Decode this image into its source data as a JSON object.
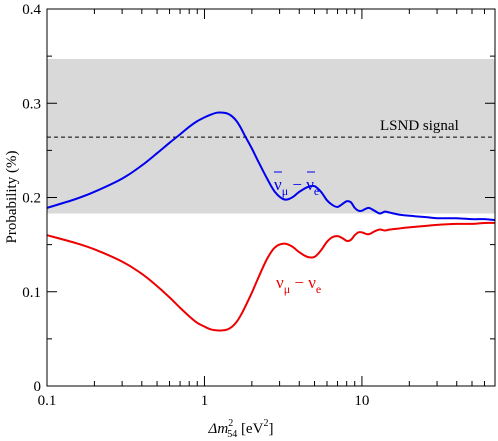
{
  "chart_data": {
    "type": "line",
    "title": "",
    "xlabel": "Δm²₅₄ [eV²]",
    "xlabel_parts": {
      "delta": "Δm",
      "sup": "2",
      "sub": "54",
      "unit_open": " [eV",
      "unit_sup": "2",
      "unit_close": "]"
    },
    "ylabel": "Probability (%)",
    "x_scale": "log",
    "xlim": [
      0.1,
      70
    ],
    "ylim": [
      0,
      0.4
    ],
    "x_ticks": [
      {
        "value": 0.1,
        "label": "0.1"
      },
      {
        "value": 1,
        "label": "1"
      },
      {
        "value": 10,
        "label": "10"
      }
    ],
    "y_ticks": [
      {
        "value": 0,
        "label": "0"
      },
      {
        "value": 0.1,
        "label": "0.1"
      },
      {
        "value": 0.2,
        "label": "0.2"
      },
      {
        "value": 0.3,
        "label": "0.3"
      },
      {
        "value": 0.4,
        "label": "0.4"
      }
    ],
    "grid": false,
    "band": {
      "y_low": 0.183,
      "y_high": 0.347,
      "color": "#d9d9d9"
    },
    "reference_line": {
      "y": 0.264,
      "label": "LSND signal",
      "style": "dashed",
      "color": "#000000"
    },
    "series": [
      {
        "label_parts": {
          "a": "ν",
          "a_sub": "μ",
          "sep": " − ",
          "b": "ν",
          "b_sub": "e",
          "bar": true
        },
        "color": "#0000ee",
        "x": [
          0.1,
          0.15,
          0.2,
          0.3,
          0.4,
          0.5,
          0.6,
          0.7,
          0.8,
          0.9,
          1.0,
          1.1,
          1.2,
          1.3,
          1.4,
          1.5,
          1.6,
          1.7,
          1.8,
          2.0,
          2.2,
          2.5,
          2.8,
          3.2,
          3.6,
          4.0,
          4.5,
          5.0,
          5.5,
          6.0,
          6.5,
          7.0,
          7.5,
          8.0,
          8.5,
          9.0,
          9.5,
          10.0,
          11.0,
          12.0,
          13.0,
          14.0,
          15.0,
          17.0,
          19.0,
          22.0,
          26.0,
          30.0,
          40.0,
          50.0,
          60.0,
          70.0
        ],
        "y": [
          0.189,
          0.198,
          0.206,
          0.22,
          0.234,
          0.247,
          0.258,
          0.267,
          0.275,
          0.281,
          0.285,
          0.288,
          0.29,
          0.29,
          0.289,
          0.286,
          0.281,
          0.274,
          0.266,
          0.252,
          0.238,
          0.22,
          0.206,
          0.198,
          0.2,
          0.206,
          0.211,
          0.212,
          0.206,
          0.197,
          0.192,
          0.19,
          0.193,
          0.196,
          0.195,
          0.189,
          0.186,
          0.186,
          0.189,
          0.186,
          0.183,
          0.185,
          0.184,
          0.182,
          0.181,
          0.18,
          0.179,
          0.178,
          0.178,
          0.177,
          0.177,
          0.176
        ]
      },
      {
        "label_parts": {
          "a": "ν",
          "a_sub": "μ",
          "sep": " − ",
          "b": "ν",
          "b_sub": "e",
          "bar": false
        },
        "color": "#ee0000",
        "x": [
          0.1,
          0.15,
          0.2,
          0.3,
          0.4,
          0.5,
          0.6,
          0.7,
          0.8,
          0.9,
          1.0,
          1.1,
          1.2,
          1.3,
          1.4,
          1.5,
          1.6,
          1.7,
          1.8,
          2.0,
          2.2,
          2.5,
          2.8,
          3.2,
          3.6,
          4.0,
          4.5,
          5.0,
          5.5,
          6.0,
          6.5,
          7.0,
          7.5,
          8.0,
          8.5,
          9.0,
          9.5,
          10.0,
          11.0,
          12.0,
          13.0,
          14.0,
          15.0,
          17.0,
          19.0,
          22.0,
          26.0,
          30.0,
          40.0,
          50.0,
          60.0,
          70.0
        ],
        "y": [
          0.16,
          0.152,
          0.145,
          0.132,
          0.119,
          0.106,
          0.094,
          0.083,
          0.074,
          0.067,
          0.063,
          0.06,
          0.059,
          0.059,
          0.06,
          0.063,
          0.068,
          0.075,
          0.083,
          0.099,
          0.115,
          0.135,
          0.147,
          0.151,
          0.148,
          0.142,
          0.137,
          0.137,
          0.144,
          0.153,
          0.158,
          0.159,
          0.157,
          0.154,
          0.155,
          0.16,
          0.163,
          0.163,
          0.161,
          0.164,
          0.166,
          0.165,
          0.166,
          0.167,
          0.168,
          0.169,
          0.17,
          0.171,
          0.172,
          0.172,
          0.173,
          0.173
        ]
      }
    ]
  }
}
